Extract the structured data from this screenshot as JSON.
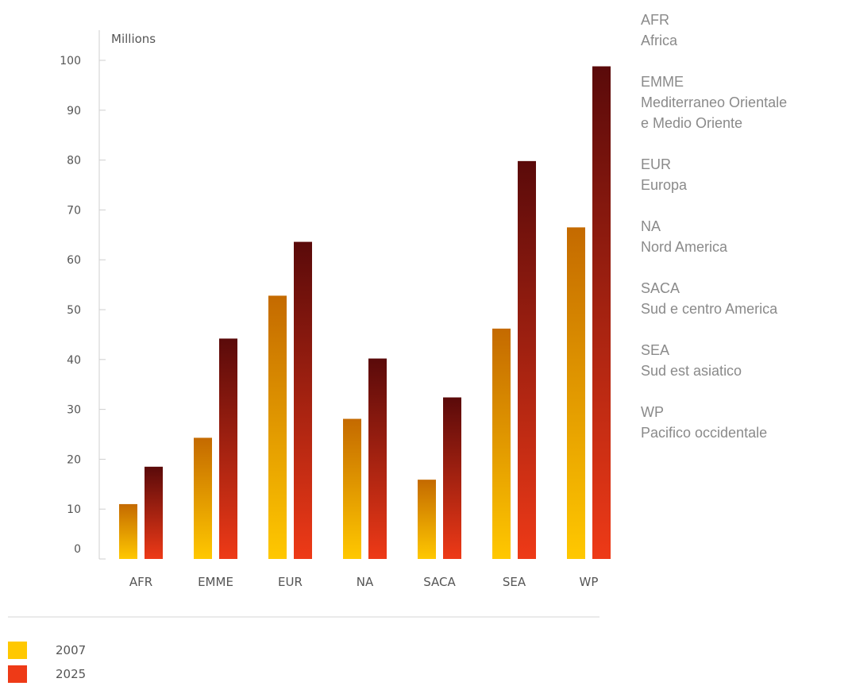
{
  "chart_data": {
    "type": "bar",
    "unit_label": "Millions",
    "categories": [
      "AFR",
      "EMME",
      "EUR",
      "NA",
      "SACA",
      "SEA",
      "WP"
    ],
    "series": [
      {
        "name": "2007",
        "values": [
          11,
          24.3,
          52.8,
          28.1,
          15.9,
          46.2,
          66.5
        ],
        "color_top": "#c46a00",
        "color_bottom": "#ffc800"
      },
      {
        "name": "2025",
        "values": [
          18.5,
          44.2,
          63.6,
          40.2,
          32.4,
          79.8,
          98.8
        ],
        "color_top": "#5a0a0a",
        "color_bottom": "#ee3a17"
      }
    ],
    "yticks": [
      0,
      10,
      20,
      30,
      40,
      50,
      60,
      70,
      80,
      90,
      100
    ],
    "ylim": [
      0,
      100
    ],
    "grid": false,
    "legend_position": "bottom-left"
  },
  "regions": [
    {
      "code": "AFR",
      "name": "Africa"
    },
    {
      "code": "EMME",
      "name": "Mediterraneo Orientale\ne Medio Oriente"
    },
    {
      "code": "EUR",
      "name": "Europa"
    },
    {
      "code": "NA",
      "name": "Nord America"
    },
    {
      "code": "SACA",
      "name": "Sud e centro America"
    },
    {
      "code": "SEA",
      "name": "Sud est asiatico"
    },
    {
      "code": "WP",
      "name": "Pacifico occidentale"
    }
  ]
}
